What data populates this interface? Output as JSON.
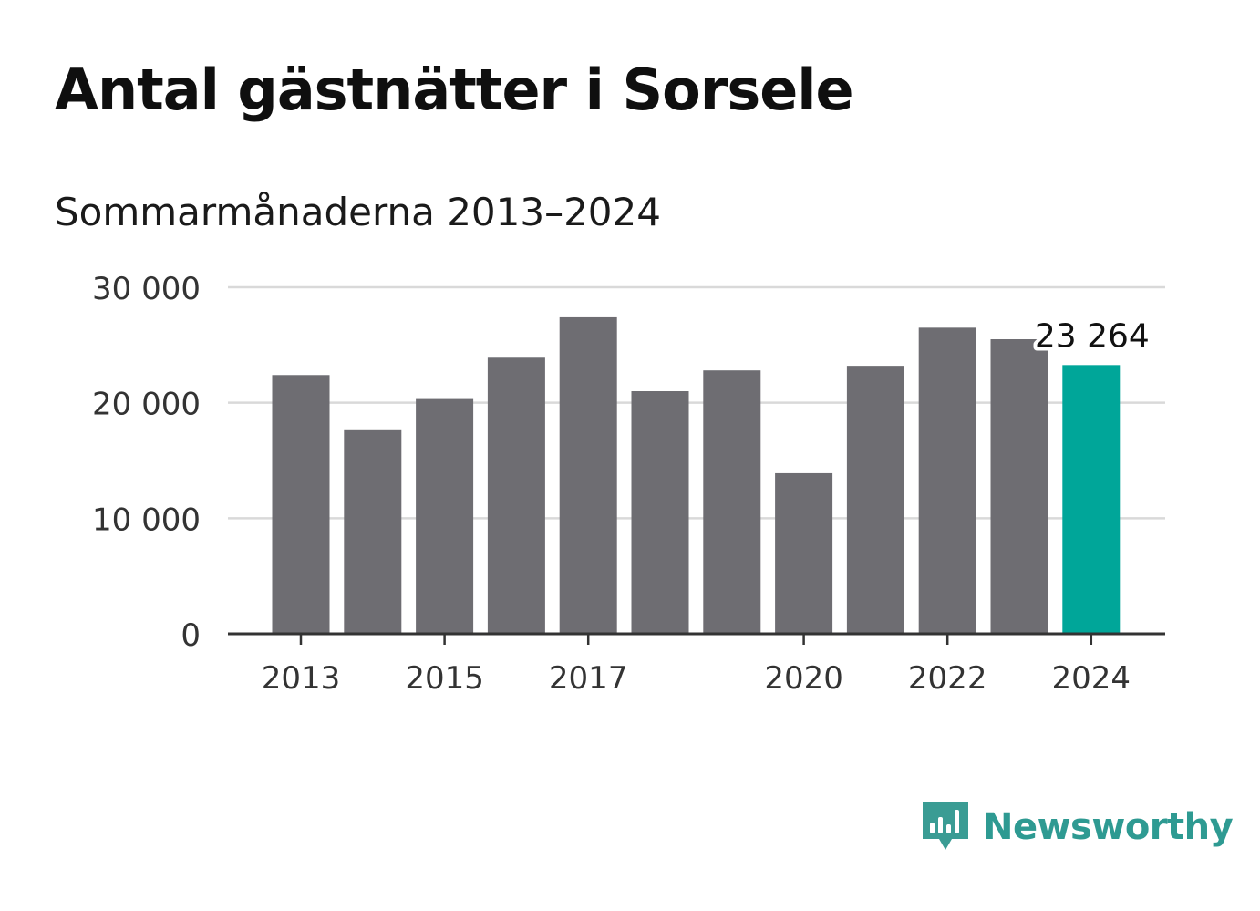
{
  "title": "Antal gästnätter i Sorsele",
  "subtitle": "Sommarmånaderna 2013–2024",
  "brand": "Newsworthy",
  "colors": {
    "bar": "#6e6d72",
    "highlight": "#00a699",
    "grid": "#d9d9d9",
    "axis": "#333333",
    "brand": "#2e9a92"
  },
  "chart_data": {
    "type": "bar",
    "title": "Antal gästnätter i Sorsele",
    "subtitle": "Sommarmånaderna 2013–2024",
    "xlabel": "",
    "ylabel": "",
    "categories": [
      "2013",
      "2014",
      "2015",
      "2016",
      "2017",
      "2018",
      "2019",
      "2020",
      "2021",
      "2022",
      "2023",
      "2024"
    ],
    "values": [
      22400,
      17700,
      20400,
      23900,
      27400,
      21000,
      22800,
      13900,
      23200,
      26500,
      25500,
      23264
    ],
    "x_tick_labels": [
      "2013",
      "2015",
      "2017",
      "2020",
      "2022",
      "2024"
    ],
    "y_ticks": [
      0,
      10000,
      20000,
      30000
    ],
    "y_tick_labels": [
      "0",
      "10 000",
      "20 000",
      "30 000"
    ],
    "ylim": [
      0,
      30000
    ],
    "grid": true,
    "highlight_index": 11,
    "annotation": {
      "category": "2024",
      "text": "23 264"
    }
  }
}
